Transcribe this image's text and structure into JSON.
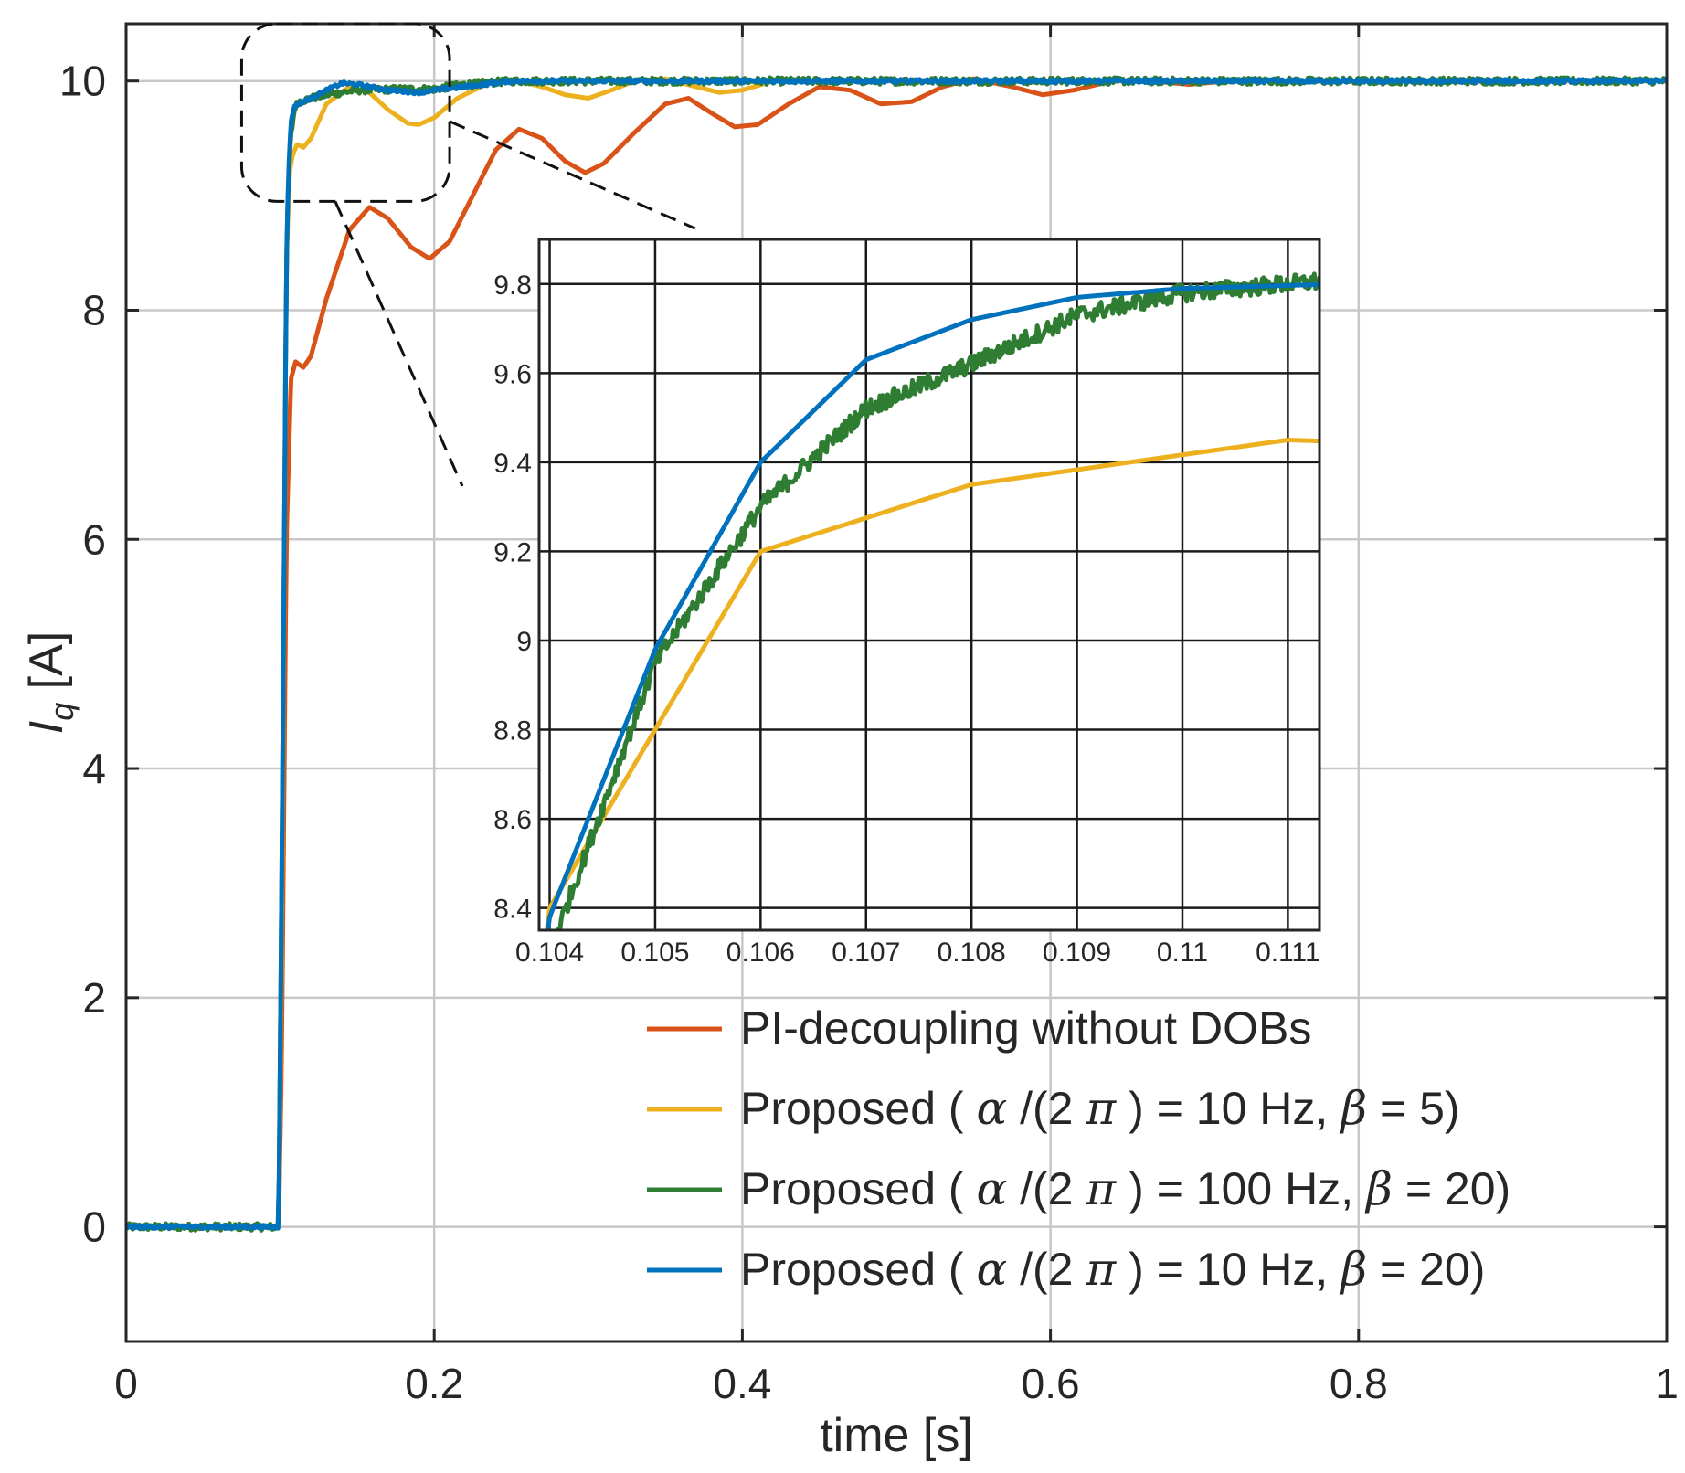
{
  "chart_data": {
    "type": "line",
    "title": "",
    "xlabel": "time [s]",
    "ylabel": "I",
    "ylabel_sub": "q",
    "ylabel_unit": " [A]",
    "xlim": [
      0,
      1
    ],
    "ylim": [
      -1,
      10.5
    ],
    "xticks": [
      0,
      0.2,
      0.4,
      0.6,
      0.8,
      1
    ],
    "xtick_labels": [
      "0",
      "0.2",
      "0.4",
      "0.6",
      "0.8",
      "1"
    ],
    "yticks": [
      0,
      2,
      4,
      6,
      8,
      10
    ],
    "ytick_labels": [
      "0",
      "2",
      "4",
      "6",
      "8",
      "10"
    ],
    "grid": true,
    "legend_position": "bottom-right",
    "step_time": 0.1,
    "final_value": 10,
    "series": [
      {
        "name": "PI-decoupling without DOBs",
        "legend_prefix": "PI-decoupling without DOBs",
        "color": "#d95319",
        "points": [
          [
            0,
            0
          ],
          [
            0.099,
            0
          ],
          [
            0.101,
            1.5
          ],
          [
            0.104,
            6.0
          ],
          [
            0.107,
            7.4
          ],
          [
            0.11,
            7.55
          ],
          [
            0.115,
            7.5
          ],
          [
            0.12,
            7.6
          ],
          [
            0.13,
            8.1
          ],
          [
            0.145,
            8.7
          ],
          [
            0.158,
            8.9
          ],
          [
            0.17,
            8.8
          ],
          [
            0.185,
            8.55
          ],
          [
            0.197,
            8.45
          ],
          [
            0.21,
            8.6
          ],
          [
            0.225,
            9.0
          ],
          [
            0.24,
            9.4
          ],
          [
            0.255,
            9.58
          ],
          [
            0.27,
            9.5
          ],
          [
            0.285,
            9.3
          ],
          [
            0.298,
            9.2
          ],
          [
            0.31,
            9.28
          ],
          [
            0.33,
            9.55
          ],
          [
            0.35,
            9.8
          ],
          [
            0.365,
            9.85
          ],
          [
            0.38,
            9.72
          ],
          [
            0.395,
            9.6
          ],
          [
            0.41,
            9.62
          ],
          [
            0.43,
            9.8
          ],
          [
            0.45,
            9.95
          ],
          [
            0.47,
            9.92
          ],
          [
            0.49,
            9.8
          ],
          [
            0.51,
            9.82
          ],
          [
            0.53,
            9.95
          ],
          [
            0.55,
            10.02
          ],
          [
            0.575,
            9.95
          ],
          [
            0.595,
            9.88
          ],
          [
            0.615,
            9.92
          ],
          [
            0.64,
            10.0
          ],
          [
            0.665,
            10.0
          ],
          [
            0.69,
            9.97
          ],
          [
            0.715,
            10.0
          ],
          [
            0.76,
            10.0
          ],
          [
            1.0,
            10.0
          ]
        ]
      },
      {
        "name": "Proposed (α/(2π) = 10 Hz, β = 5)",
        "legend_prefix": "Proposed ( ",
        "legend_mid": " = 10 Hz,  ",
        "legend_suffix": " = 5)",
        "color": "#edb120",
        "points": [
          [
            0,
            0
          ],
          [
            0.099,
            0
          ],
          [
            0.101,
            2.5
          ],
          [
            0.104,
            8.4
          ],
          [
            0.106,
            9.2
          ],
          [
            0.108,
            9.35
          ],
          [
            0.111,
            9.45
          ],
          [
            0.115,
            9.42
          ],
          [
            0.12,
            9.5
          ],
          [
            0.13,
            9.8
          ],
          [
            0.145,
            9.95
          ],
          [
            0.158,
            9.9
          ],
          [
            0.17,
            9.75
          ],
          [
            0.183,
            9.63
          ],
          [
            0.19,
            9.62
          ],
          [
            0.2,
            9.68
          ],
          [
            0.215,
            9.85
          ],
          [
            0.235,
            9.98
          ],
          [
            0.255,
            10.0
          ],
          [
            0.27,
            9.95
          ],
          [
            0.285,
            9.88
          ],
          [
            0.3,
            9.85
          ],
          [
            0.315,
            9.92
          ],
          [
            0.33,
            10.0
          ],
          [
            0.35,
            10.02
          ],
          [
            0.37,
            9.95
          ],
          [
            0.385,
            9.9
          ],
          [
            0.4,
            9.92
          ],
          [
            0.42,
            10.0
          ],
          [
            0.45,
            10.0
          ],
          [
            1.0,
            10.0
          ]
        ]
      },
      {
        "name": "Proposed (α/(2π) = 100 Hz, β = 20)",
        "legend_prefix": "Proposed ( ",
        "legend_mid": " = 100 Hz,  ",
        "legend_suffix": " = 20)",
        "color": "#2e7d32",
        "noisy": true,
        "points": [
          [
            0,
            0
          ],
          [
            0.099,
            0
          ],
          [
            0.101,
            3.0
          ],
          [
            0.104,
            8.3
          ],
          [
            0.105,
            8.95
          ],
          [
            0.106,
            9.3
          ],
          [
            0.107,
            9.52
          ],
          [
            0.108,
            9.62
          ],
          [
            0.109,
            9.73
          ],
          [
            0.11,
            9.78
          ],
          [
            0.112,
            9.82
          ],
          [
            0.12,
            9.85
          ],
          [
            0.13,
            9.88
          ],
          [
            0.15,
            9.92
          ],
          [
            0.18,
            9.93
          ],
          [
            0.2,
            9.93
          ],
          [
            0.22,
            9.97
          ],
          [
            0.25,
            10.0
          ],
          [
            0.3,
            10.0
          ],
          [
            1.0,
            10.0
          ]
        ]
      },
      {
        "name": "Proposed (α/(2π) = 10 Hz, β = 20)",
        "legend_prefix": "Proposed ( ",
        "legend_mid": " = 10 Hz,  ",
        "legend_suffix": " = 20)",
        "color": "#0072bd",
        "points": [
          [
            0,
            0
          ],
          [
            0.099,
            0
          ],
          [
            0.101,
            3.0
          ],
          [
            0.104,
            8.38
          ],
          [
            0.105,
            8.98
          ],
          [
            0.106,
            9.4
          ],
          [
            0.107,
            9.63
          ],
          [
            0.108,
            9.72
          ],
          [
            0.109,
            9.77
          ],
          [
            0.11,
            9.79
          ],
          [
            0.1115,
            9.8
          ],
          [
            0.12,
            9.85
          ],
          [
            0.13,
            9.92
          ],
          [
            0.14,
            9.98
          ],
          [
            0.15,
            9.97
          ],
          [
            0.17,
            9.92
          ],
          [
            0.19,
            9.9
          ],
          [
            0.2,
            9.92
          ],
          [
            0.22,
            9.95
          ],
          [
            0.25,
            10.0
          ],
          [
            0.3,
            10.0
          ],
          [
            1.0,
            10.0
          ]
        ]
      }
    ],
    "legend_symbols": {
      "alpha": "α",
      "slash": " /(2 ",
      "pi": "π",
      "close": " )",
      "beta": "β"
    },
    "zoom_region": {
      "xlim": [
        0.075,
        0.21
      ],
      "ylim": [
        8.95,
        10.5
      ]
    },
    "inset": {
      "xlim": [
        0.1039,
        0.1113
      ],
      "ylim": [
        8.35,
        9.9
      ],
      "xticks": [
        0.104,
        0.105,
        0.106,
        0.107,
        0.108,
        0.109,
        0.11,
        0.111
      ],
      "xtick_labels": [
        "0.104",
        "0.105",
        "0.106",
        "0.107",
        "0.108",
        "0.109",
        "0.11",
        "0.111"
      ],
      "yticks": [
        8.4,
        8.6,
        8.8,
        9.0,
        9.2,
        9.4,
        9.6,
        9.8
      ],
      "ytick_labels": [
        "8.4",
        "8.6",
        "8.8",
        "9",
        "9.2",
        "9.4",
        "9.6",
        "9.8"
      ]
    }
  }
}
